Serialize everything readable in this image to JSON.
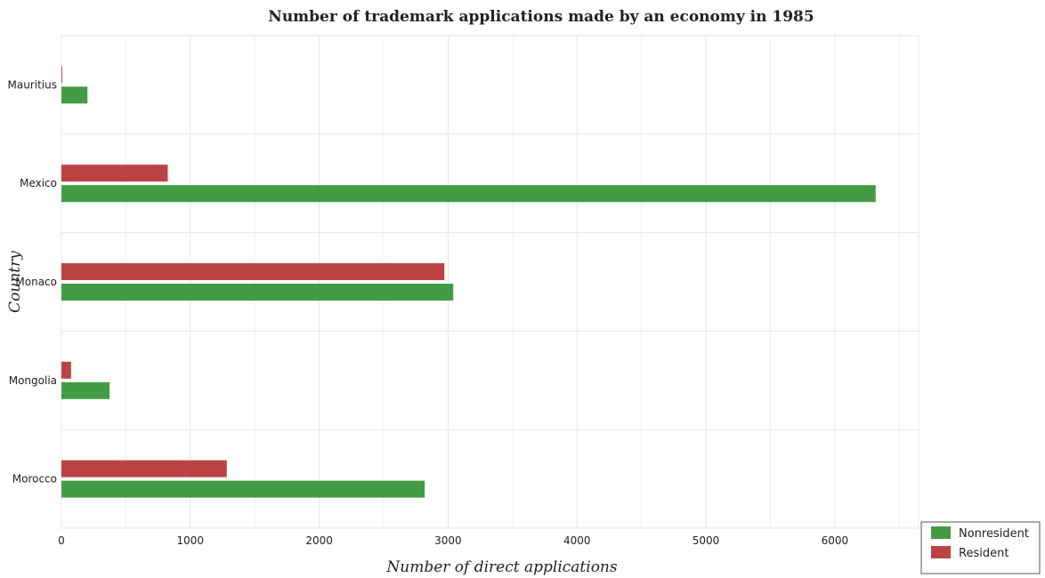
{
  "chart_data": {
    "type": "bar",
    "orientation": "horizontal",
    "title": "Number of trademark applications made by an economy in 1985",
    "xlabel": "Number of direct applications",
    "ylabel": "Country",
    "xlim": [
      0,
      6650
    ],
    "xticks": [
      0,
      1000,
      2000,
      3000,
      4000,
      5000,
      6000
    ],
    "xtick_labels": [
      "0",
      "1000",
      "2000",
      "3000",
      "4000",
      "5000",
      "6000"
    ],
    "categories": [
      "Mauritius",
      "Mexico",
      "Monaco",
      "Mongolia",
      "Morocco"
    ],
    "series": [
      {
        "name": "Nonresident",
        "color": "#228b22",
        "values": [
          202,
          6317,
          3040,
          374,
          2818
        ]
      },
      {
        "name": "Resident",
        "color": "#b22222",
        "values": [
          6,
          825,
          2971,
          75,
          1283
        ]
      }
    ],
    "grid": true,
    "legend_position": "bottom-right"
  }
}
